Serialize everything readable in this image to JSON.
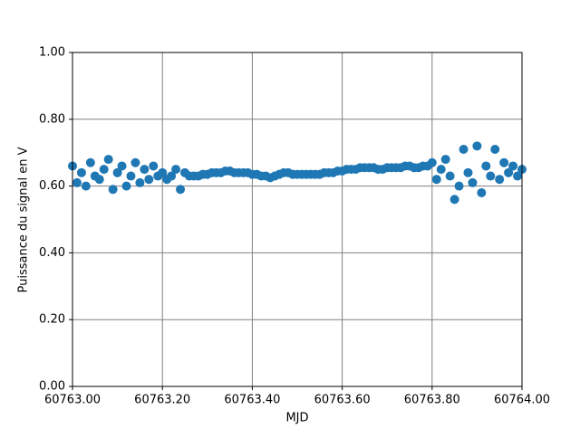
{
  "chart_data": {
    "type": "scatter",
    "xlabel": "MJD",
    "ylabel": "Puissance du signal en V",
    "color": "#1f77b4",
    "grid": true,
    "xlim": [
      60763.0,
      60764.0
    ],
    "xticks": [
      {
        "value": 60763.0,
        "label": "60763.00"
      },
      {
        "value": 60763.2,
        "label": "60763.20"
      },
      {
        "value": 60763.4,
        "label": "60763.40"
      },
      {
        "value": 60763.6,
        "label": "60763.60"
      },
      {
        "value": 60763.8,
        "label": "60763.80"
      },
      {
        "value": 60764.0,
        "label": "60764.00"
      }
    ],
    "ylim": [
      0,
      1
    ],
    "yticks": [
      {
        "value": 0,
        "label": "0.00"
      },
      {
        "value": 0.2,
        "label": "0.20"
      },
      {
        "value": 0.4,
        "label": "0.40"
      },
      {
        "value": 0.6,
        "label": "0.60"
      },
      {
        "value": 0.8,
        "label": "0.80"
      },
      {
        "value": 1,
        "label": "1.00"
      }
    ],
    "x": [
      60763.0,
      60763.01,
      60763.02,
      60763.03,
      60763.04,
      60763.05,
      60763.06,
      60763.07,
      60763.08,
      60763.09,
      60763.1,
      60763.11,
      60763.12,
      60763.13,
      60763.14,
      60763.15,
      60763.16,
      60763.17,
      60763.18,
      60763.19,
      60763.2,
      60763.21,
      60763.22,
      60763.23,
      60763.24,
      60763.25,
      60763.26,
      60763.27,
      60763.28,
      60763.29,
      60763.3,
      60763.31,
      60763.32,
      60763.33,
      60763.34,
      60763.35,
      60763.36,
      60763.37,
      60763.38,
      60763.39,
      60763.4,
      60763.41,
      60763.42,
      60763.43,
      60763.44,
      60763.45,
      60763.46,
      60763.47,
      60763.48,
      60763.49,
      60763.5,
      60763.51,
      60763.52,
      60763.53,
      60763.54,
      60763.55,
      60763.56,
      60763.57,
      60763.58,
      60763.59,
      60763.6,
      60763.61,
      60763.62,
      60763.63,
      60763.64,
      60763.65,
      60763.66,
      60763.67,
      60763.68,
      60763.69,
      60763.7,
      60763.71,
      60763.72,
      60763.73,
      60763.74,
      60763.75,
      60763.76,
      60763.77,
      60763.78,
      60763.79,
      60763.8,
      60763.81,
      60763.82,
      60763.83,
      60763.84,
      60763.85,
      60763.86,
      60763.87,
      60763.88,
      60763.89,
      60763.9,
      60763.91,
      60763.92,
      60763.93,
      60763.94,
      60763.95,
      60763.96,
      60763.97,
      60763.98,
      60763.99,
      60764.0
    ],
    "values": [
      0.66,
      0.61,
      0.64,
      0.6,
      0.67,
      0.63,
      0.62,
      0.65,
      0.68,
      0.59,
      0.64,
      0.66,
      0.6,
      0.63,
      0.67,
      0.61,
      0.65,
      0.62,
      0.66,
      0.63,
      0.64,
      0.62,
      0.63,
      0.65,
      0.59,
      0.64,
      0.63,
      0.63,
      0.63,
      0.635,
      0.635,
      0.64,
      0.64,
      0.64,
      0.645,
      0.645,
      0.64,
      0.64,
      0.64,
      0.64,
      0.635,
      0.635,
      0.63,
      0.63,
      0.625,
      0.63,
      0.635,
      0.64,
      0.64,
      0.635,
      0.635,
      0.635,
      0.635,
      0.635,
      0.635,
      0.635,
      0.64,
      0.64,
      0.64,
      0.645,
      0.645,
      0.65,
      0.65,
      0.65,
      0.655,
      0.655,
      0.655,
      0.655,
      0.65,
      0.65,
      0.655,
      0.655,
      0.655,
      0.655,
      0.66,
      0.66,
      0.655,
      0.655,
      0.66,
      0.66,
      0.67,
      0.62,
      0.65,
      0.68,
      0.63,
      0.56,
      0.6,
      0.71,
      0.64,
      0.61,
      0.72,
      0.58,
      0.66,
      0.63,
      0.71,
      0.62,
      0.67,
      0.64,
      0.66,
      0.63,
      0.65
    ]
  }
}
